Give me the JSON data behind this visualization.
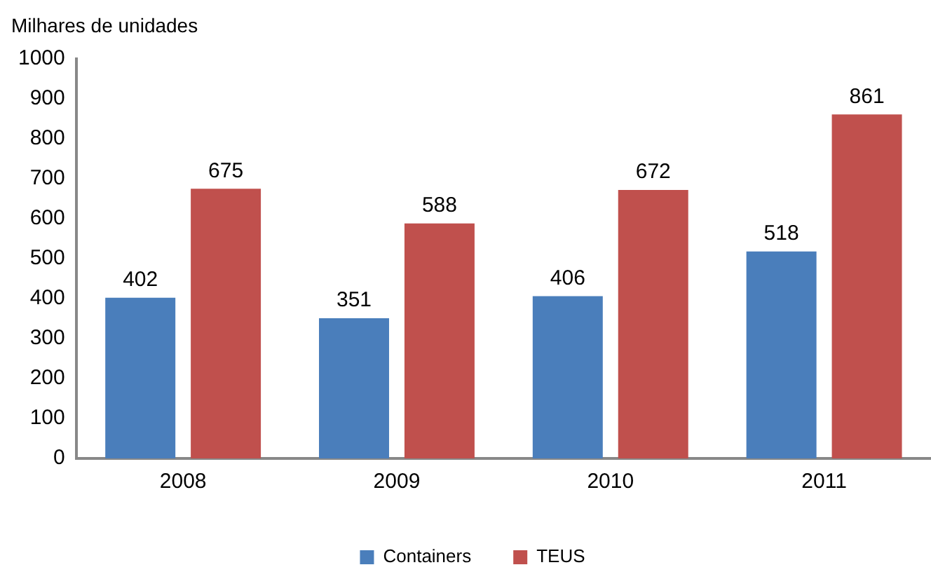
{
  "chart_data": {
    "type": "bar",
    "ylabel": "Milhares de unidades",
    "categories": [
      "2008",
      "2009",
      "2010",
      "2011"
    ],
    "series": [
      {
        "name": "Containers",
        "color": "#4a7ebb",
        "values": [
          402,
          351,
          406,
          518
        ]
      },
      {
        "name": "TEUS",
        "color": "#c0504d",
        "values": [
          675,
          588,
          672,
          861
        ]
      }
    ],
    "ylim": [
      0,
      1000
    ],
    "yticks": [
      0,
      100,
      200,
      300,
      400,
      500,
      600,
      700,
      800,
      900,
      1000
    ],
    "grid": false,
    "legend": "bottom",
    "data_labels": true
  }
}
